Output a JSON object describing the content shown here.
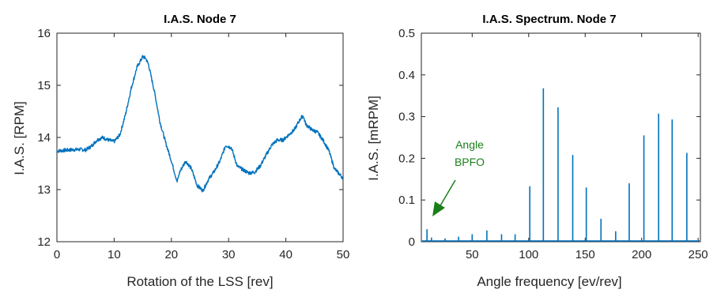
{
  "chart_data": [
    {
      "type": "line",
      "title": "I.A.S. Node 7",
      "xlabel": "Rotation of the LSS [rev]",
      "ylabel": "I.A.S. [RPM]",
      "xlim": [
        0,
        50
      ],
      "ylim": [
        12,
        16
      ],
      "xticks": [
        "0",
        "10",
        "20",
        "30",
        "40",
        "50"
      ],
      "yticks": [
        "12",
        "13",
        "14",
        "15",
        "16"
      ],
      "grid": false,
      "series": [
        {
          "color": "#0072BD",
          "x": [
            0,
            2,
            4,
            5,
            6,
            7,
            8,
            9,
            10,
            11,
            12,
            13,
            14,
            15,
            15.5,
            16,
            17,
            18,
            19,
            20,
            21,
            21.5,
            22.5,
            23.5,
            24.5,
            25.5,
            26.5,
            27.5,
            28.5,
            29.5,
            30.5,
            31.5,
            32.5,
            33.5,
            34.5,
            35.5,
            36.5,
            37.5,
            38.5,
            39.5,
            40.5,
            41.5,
            42.5,
            43,
            43.5,
            44.5,
            45.5,
            46.5,
            47.5,
            48.5,
            49.5,
            50
          ],
          "y": [
            13.74,
            13.76,
            13.77,
            13.76,
            13.83,
            13.95,
            14.0,
            13.95,
            13.92,
            14.05,
            14.45,
            14.95,
            15.35,
            15.55,
            15.52,
            15.4,
            14.9,
            14.3,
            13.9,
            13.55,
            13.15,
            13.35,
            13.55,
            13.4,
            13.08,
            12.98,
            13.2,
            13.35,
            13.55,
            13.85,
            13.8,
            13.45,
            13.38,
            13.32,
            13.33,
            13.45,
            13.65,
            13.85,
            13.95,
            13.95,
            14.05,
            14.15,
            14.35,
            14.42,
            14.25,
            14.15,
            14.1,
            13.95,
            13.75,
            13.4,
            13.28,
            13.22
          ]
        }
      ]
    },
    {
      "type": "bar",
      "title": "I.A.S. Spectrum. Node 7",
      "xlabel": "Angle frequency [ev/rev]",
      "ylabel": "I.A.S. [mRPM]",
      "xlim": [
        5,
        252
      ],
      "ylim": [
        0,
        0.5
      ],
      "xticks": [
        "50",
        "100",
        "150",
        "200",
        "250"
      ],
      "yticks": [
        "0",
        "0.1",
        "0.2",
        "0.3",
        "0.4",
        "0.5"
      ],
      "grid": false,
      "series": [
        {
          "color": "#0072BD",
          "x": [
            10,
            14,
            26,
            38,
            50,
            63,
            76,
            88,
            101,
            113,
            126,
            139,
            151,
            164,
            177,
            189,
            202,
            215,
            227,
            240
          ],
          "values": [
            0.03,
            0.01,
            0.008,
            0.012,
            0.018,
            0.027,
            0.018,
            0.018,
            0.133,
            0.368,
            0.322,
            0.208,
            0.13,
            0.055,
            0.025,
            0.14,
            0.255,
            0.307,
            0.293,
            0.213
          ]
        }
      ],
      "annotation": {
        "text_line1": "Angle",
        "text_line2": "BPFO",
        "color": "#1a7f1a"
      }
    }
  ]
}
